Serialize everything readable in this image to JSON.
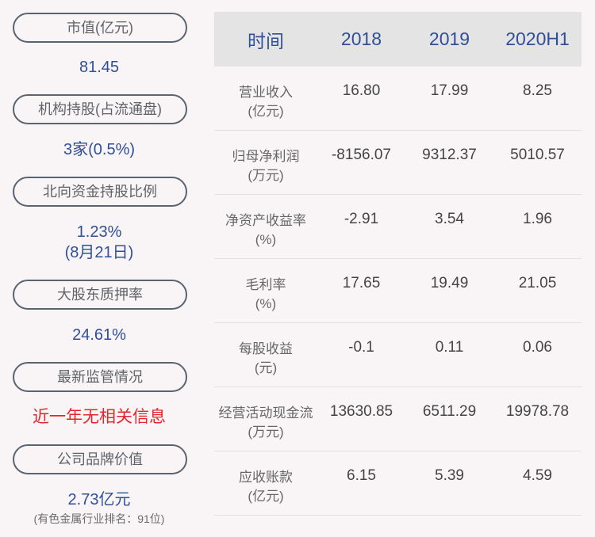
{
  "left_panel": [
    {
      "label": "市值(亿元)",
      "value": "81.45"
    },
    {
      "label": "机构持股(占流通盘)",
      "value": "3家(0.5%)"
    },
    {
      "label": "北向资金持股比例",
      "value": "1.23%",
      "value2": "(8月21日)"
    },
    {
      "label": "大股东质押率",
      "value": "24.61%"
    },
    {
      "label": "最新监管情况",
      "value": "近一年无相关信息"
    },
    {
      "label": "公司品牌价值",
      "value": "2.73亿元",
      "note": "(有色金属行业排名：91位)"
    }
  ],
  "table": {
    "headers": [
      "时间",
      "2018",
      "2019",
      "2020H1"
    ],
    "rows": [
      {
        "label": "营业收入",
        "unit": "(亿元)",
        "values": [
          "16.80",
          "17.99",
          "8.25"
        ]
      },
      {
        "label": "归母净利润",
        "unit": "(万元)",
        "values": [
          "-8156.07",
          "9312.37",
          "5010.57"
        ]
      },
      {
        "label": "净资产收益率",
        "unit": "(%)",
        "values": [
          "-2.91",
          "3.54",
          "1.96"
        ]
      },
      {
        "label": "毛利率",
        "unit": "(%)",
        "values": [
          "17.65",
          "19.49",
          "21.05"
        ]
      },
      {
        "label": "每股收益",
        "unit": "(元)",
        "values": [
          "-0.1",
          "0.11",
          "0.06"
        ]
      },
      {
        "label": "经营活动现金流",
        "unit": "(万元)",
        "values": [
          "13630.85",
          "6511.29",
          "19978.78"
        ]
      },
      {
        "label": "应收账款",
        "unit": "(亿元)",
        "values": [
          "6.15",
          "5.39",
          "4.59"
        ]
      }
    ]
  },
  "colors": {
    "accent": "#2f4f98",
    "alert": "#e4262c",
    "header_bg": "#e5e4e5",
    "background": "#f9f5f6"
  }
}
